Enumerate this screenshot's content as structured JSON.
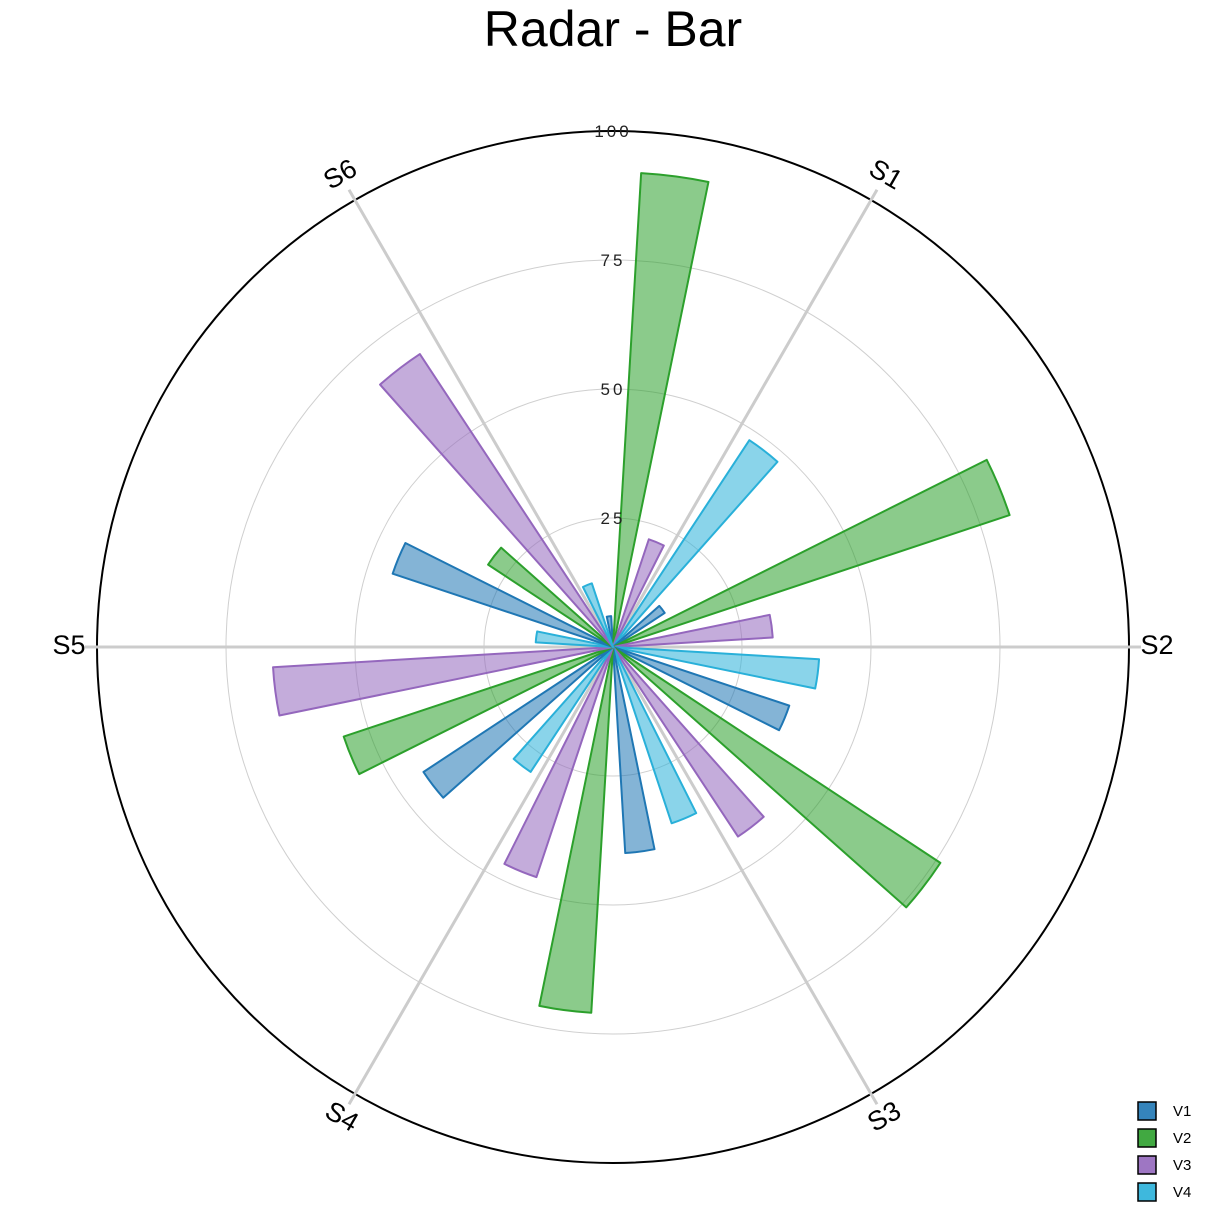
{
  "chart_data": {
    "type": "radar-bar",
    "title": "Radar - Bar",
    "categories": [
      "S1",
      "S2",
      "S3",
      "S4",
      "S5",
      "S6"
    ],
    "radial_axis": {
      "range": [
        0,
        100
      ],
      "ticks": [
        "25",
        "50",
        "75",
        "100"
      ],
      "tick_values": [
        25,
        50,
        75,
        100
      ]
    },
    "legend_position": "bottom-right",
    "series": [
      {
        "name": "V1",
        "color": "#1f77b4",
        "values": [
          6,
          12,
          36,
          40,
          44,
          45
        ]
      },
      {
        "name": "V2",
        "color": "#2ca02c",
        "values": [
          92,
          81,
          76,
          71,
          55,
          29
        ]
      },
      {
        "name": "V3",
        "color": "#9467bd",
        "values": [
          22,
          31,
          44,
          47,
          66,
          68
        ]
      },
      {
        "name": "V4",
        "color": "#29b0d9",
        "values": [
          48,
          40,
          36,
          29,
          15,
          13
        ]
      }
    ]
  }
}
